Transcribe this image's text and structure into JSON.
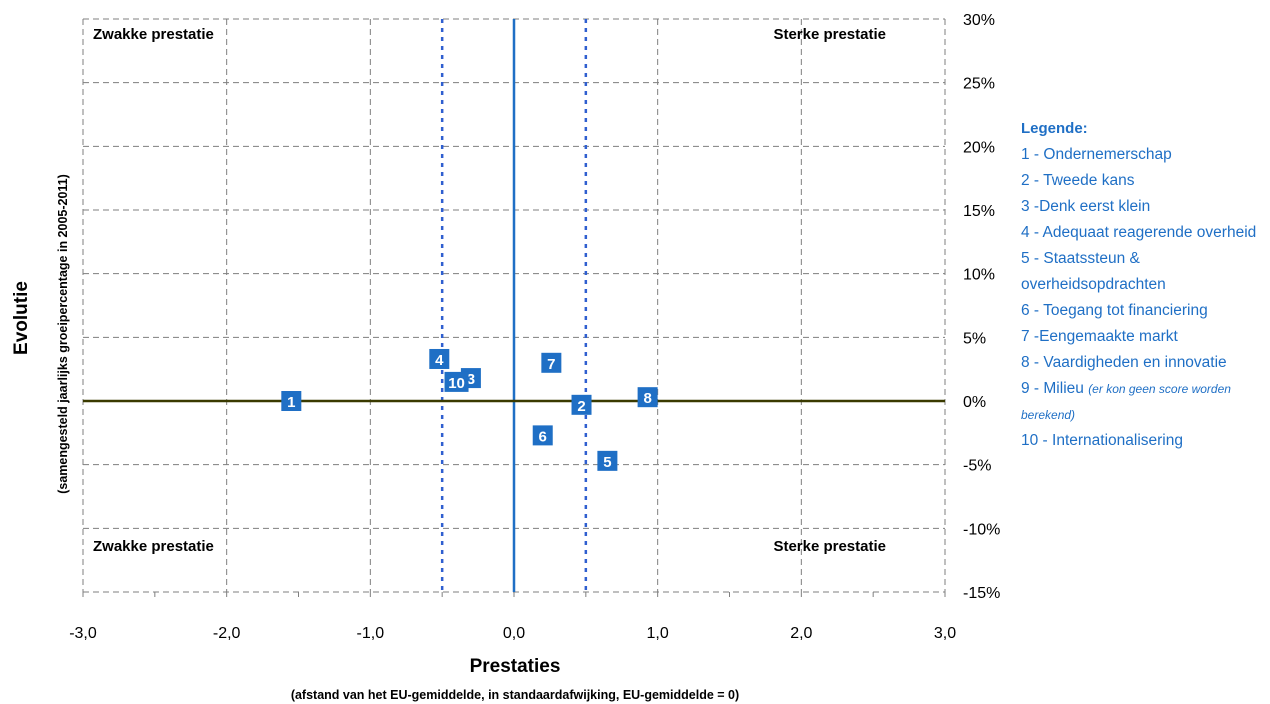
{
  "chart_data": {
    "type": "scatter",
    "title": "",
    "xlabel": "Prestaties",
    "xlabel_sub": "(afstand van het EU-gemiddelde, in standaardafwijking, EU-gemiddelde = 0)",
    "ylabel": "Evolutie",
    "ylabel_sub": "(samengesteld jaarlijks groeipercentage in 2005-2011)",
    "xlim": [
      -3.0,
      3.0
    ],
    "ylim": [
      -15,
      30
    ],
    "x_ticks": [
      -3.0,
      -2.0,
      -1.0,
      0.0,
      1.0,
      2.0,
      3.0
    ],
    "x_tick_labels": [
      "-3,0",
      "-2,0",
      "-1,0",
      "0,0",
      "1,0",
      "2,0",
      "3,0"
    ],
    "y_ticks": [
      30,
      25,
      20,
      15,
      10,
      5,
      0,
      -5,
      -10,
      -15
    ],
    "y_tick_labels": [
      "30%",
      "25%",
      "20%",
      "15%",
      "10%",
      "5%",
      "0%",
      "-5%",
      "-10%",
      "-15%"
    ],
    "grid": true,
    "reference_lines": {
      "x_solid": 0.0,
      "x_dashed": [
        -0.5,
        0.5
      ],
      "y_solid": 0
    },
    "quadrant_labels": {
      "top_left": "Zwakke prestatie",
      "top_right": "Sterke prestatie",
      "bottom_left": "Zwakke prestatie",
      "bottom_right": "Sterke prestatie"
    },
    "points": [
      {
        "label": "1",
        "x": -1.55,
        "y": 0.0
      },
      {
        "label": "2",
        "x": 0.47,
        "y": -0.3
      },
      {
        "label": "3",
        "x": -0.3,
        "y": 1.8
      },
      {
        "label": "4",
        "x": -0.52,
        "y": 3.3
      },
      {
        "label": "5",
        "x": 0.65,
        "y": -4.7
      },
      {
        "label": "6",
        "x": 0.2,
        "y": -2.7
      },
      {
        "label": "7",
        "x": 0.26,
        "y": 3.0
      },
      {
        "label": "8",
        "x": 0.93,
        "y": 0.3
      },
      {
        "label": "10",
        "x": -0.4,
        "y": 1.5
      }
    ],
    "marker_color": "#1f6fc5",
    "baseline_color": "#3a3a00",
    "zero_line_color": "#1f6fc5"
  },
  "legend": {
    "title": "Legende:",
    "items": [
      {
        "text": "1 - Ondernemerschap"
      },
      {
        "text": "2 - Tweede kans"
      },
      {
        "text": "3 -Denk eerst klein"
      },
      {
        "text": "4 - Adequaat reagerende overheid"
      },
      {
        "text": "5 - Staatssteun & overheidsopdrachten"
      },
      {
        "text": "6 -  Toegang tot financiering"
      },
      {
        "text": "7 -Eengemaakte markt"
      },
      {
        "text": "8 - Vaardigheden en innovatie"
      },
      {
        "text": "9 - Milieu ",
        "note": "(er kon geen score worden berekend)"
      },
      {
        "text": "10 - Internationalisering"
      }
    ]
  }
}
